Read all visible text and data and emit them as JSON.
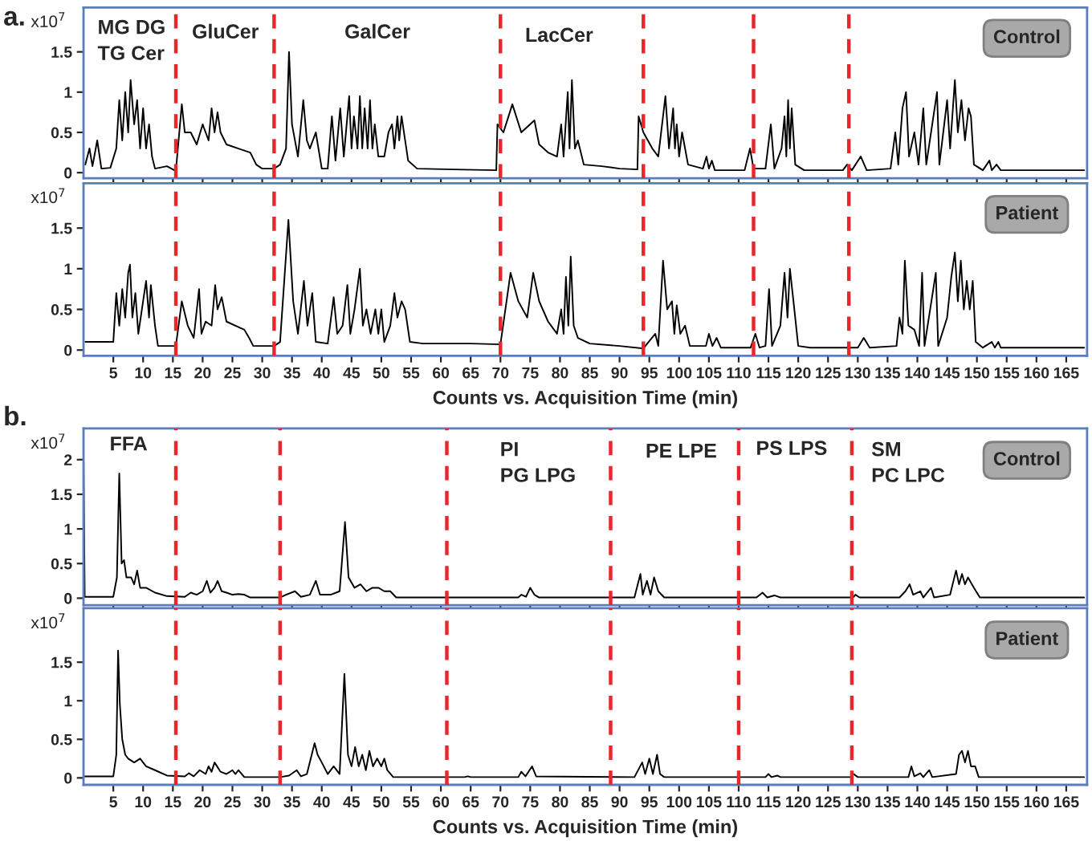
{
  "chart_data": [
    {
      "type": "line",
      "title": "a.",
      "ylabel": "x10$^{7}$",
      "tick_labels": "y",
      "xlim": [
        0,
        168.5
      ],
      "xticks": [
        5,
        10,
        15,
        20,
        25,
        30,
        35,
        40,
        45,
        50,
        55,
        60,
        65,
        70,
        75,
        80,
        85,
        90,
        95,
        100,
        105,
        110,
        115,
        120,
        125,
        130,
        135,
        140,
        145,
        150,
        155,
        160,
        165
      ],
      "ylim": [
        -0.07,
        2.05
      ],
      "yticks": [
        0,
        0.5,
        1,
        1.5
      ],
      "annotations": [
        "Control",
        "MG DG\nTG Cer",
        "GluCer",
        "GalCer",
        "LacCer"
      ],
      "ref_lines": [
        {
          "axis": "x",
          "value": 15.5,
          "color": "#e8262b",
          "line_style": "dashed"
        },
        {
          "axis": "x",
          "value": 32,
          "color": "#e8262b",
          "line_style": "dashed"
        },
        {
          "axis": "x",
          "value": 70,
          "color": "#e8262b",
          "line_style": "dashed"
        },
        {
          "axis": "x",
          "value": 94,
          "color": "#e8262b",
          "line_style": "dashed"
        },
        {
          "axis": "x",
          "value": 112.5,
          "color": "#e8262b",
          "line_style": "dashed"
        },
        {
          "axis": "x",
          "value": 128.5,
          "color": "#e8262b",
          "line_style": "dashed"
        }
      ],
      "series": [
        {
          "color": "#000000",
          "x": [
            0.3,
            1,
            1.5,
            2.3,
            3,
            4.5,
            5.5,
            6,
            6.5,
            7,
            7.5,
            7.9,
            8.5,
            9,
            9.5,
            10,
            10.5,
            11,
            11.5,
            12,
            14,
            15.5,
            16.5,
            17,
            18,
            19,
            20,
            21,
            21.5,
            22,
            22.5,
            23,
            24,
            26,
            28,
            29,
            30,
            32,
            33,
            34,
            34.5,
            35,
            36,
            36.9,
            37.5,
            38,
            39,
            40,
            41,
            41.7,
            42.3,
            43.1,
            43.7,
            44.6,
            45,
            45.4,
            46,
            46.4,
            46.8,
            47.2,
            47.7,
            48.1,
            48.5,
            48.9,
            49.5,
            50.5,
            51.2,
            51.8,
            52.2,
            52.7,
            53,
            53.4,
            54.5,
            56,
            62,
            69.3,
            69.5,
            70.5,
            72,
            73.5,
            75.7,
            76.5,
            78,
            79.5,
            80.2,
            80.6,
            81.3,
            81.6,
            82,
            82.5,
            83,
            84,
            87,
            90,
            93,
            93.2,
            94,
            95.5,
            96.5,
            97.7,
            98.3,
            99,
            99.3,
            99.6,
            100,
            100.5,
            101.5,
            104,
            104.6,
            105,
            105.5,
            106,
            111,
            111.9,
            112.5,
            114.5,
            115.4,
            116,
            117.2,
            117.7,
            118,
            118.3,
            118.6,
            118.9,
            119.5,
            121,
            127.5,
            128.2,
            129,
            130.5,
            131.5,
            135.5,
            136.3,
            136.8,
            137.5,
            138.1,
            138.6,
            139.5,
            140.2,
            141,
            141.5,
            143.3,
            143.7,
            145,
            145.5,
            146.3,
            146.8,
            147.4,
            148,
            148.6,
            149,
            149.5,
            151,
            152.1,
            152.5,
            153.3,
            154,
            168
          ],
          "values": [
            0.1,
            0.3,
            0.08,
            0.4,
            0.05,
            0.06,
            0.3,
            0.9,
            0.4,
            1.0,
            0.5,
            1.15,
            0.6,
            0.9,
            0.3,
            0.8,
            0.3,
            0.6,
            0.2,
            0.05,
            0.08,
            0.02,
            0.85,
            0.5,
            0.5,
            0.35,
            0.6,
            0.4,
            0.8,
            0.5,
            0.75,
            0.5,
            0.35,
            0.3,
            0.25,
            0.1,
            0.05,
            0.05,
            0.1,
            0.3,
            1.5,
            0.6,
            0.2,
            0.9,
            0.4,
            0.3,
            0.5,
            0.05,
            0.05,
            0.7,
            0.15,
            0.8,
            0.2,
            0.95,
            0.3,
            0.7,
            0.3,
            0.95,
            0.3,
            0.8,
            0.3,
            0.9,
            0.3,
            0.6,
            0.2,
            0.2,
            0.5,
            0.6,
            0.3,
            0.7,
            0.4,
            0.7,
            0.15,
            0.05,
            0.04,
            0.03,
            0.6,
            0.5,
            0.85,
            0.5,
            0.65,
            0.35,
            0.25,
            0.2,
            0.6,
            0.2,
            1.0,
            0.3,
            1.15,
            0.3,
            0.4,
            0.1,
            0.08,
            0.05,
            0.04,
            0.7,
            0.5,
            0.3,
            0.2,
            0.95,
            0.3,
            0.8,
            0.3,
            0.6,
            0.2,
            0.5,
            0.1,
            0.05,
            0.2,
            0.05,
            0.15,
            0.03,
            0.03,
            0.3,
            0.05,
            0.05,
            0.6,
            0.05,
            0.3,
            0.7,
            0.2,
            0.9,
            0.3,
            0.8,
            0.1,
            0.03,
            0.03,
            0.1,
            0.03,
            0.2,
            0.03,
            0.05,
            0.5,
            0.1,
            0.8,
            1.0,
            0.2,
            0.5,
            0.1,
            0.8,
            0.1,
            1.0,
            0.1,
            0.9,
            0.3,
            1.15,
            0.5,
            0.9,
            0.4,
            0.8,
            0.7,
            0.1,
            0.03,
            0.15,
            0.03,
            0.1,
            0.03,
            0.03
          ]
        }
      ]
    },
    {
      "type": "line",
      "ylabel": "x10$^{7}$",
      "xlabel": "Counts vs. Acquisition Time (min)",
      "xlim": [
        0,
        168.5
      ],
      "xticks": [
        5,
        10,
        15,
        20,
        25,
        30,
        35,
        40,
        45,
        50,
        55,
        60,
        65,
        70,
        75,
        80,
        85,
        90,
        95,
        100,
        105,
        110,
        115,
        120,
        125,
        130,
        135,
        140,
        145,
        150,
        155,
        160,
        165
      ],
      "ylim": [
        -0.07,
        2.05
      ],
      "yticks": [
        0,
        0.5,
        1,
        1.5
      ],
      "annotations": [
        "Patient"
      ],
      "ref_lines": [
        {
          "axis": "x",
          "value": 15.5,
          "color": "#e8262b",
          "line_style": "dashed"
        },
        {
          "axis": "x",
          "value": 32,
          "color": "#e8262b",
          "line_style": "dashed"
        },
        {
          "axis": "x",
          "value": 70,
          "color": "#e8262b",
          "line_style": "dashed"
        },
        {
          "axis": "x",
          "value": 94,
          "color": "#e8262b",
          "line_style": "dashed"
        },
        {
          "axis": "x",
          "value": 112.5,
          "color": "#e8262b",
          "line_style": "dashed"
        },
        {
          "axis": "x",
          "value": 128.5,
          "color": "#e8262b",
          "line_style": "dashed"
        }
      ],
      "series": [
        {
          "color": "#000000",
          "x": [
            0.3,
            5,
            5.5,
            6,
            6.5,
            7,
            7.5,
            7.8,
            8.2,
            8.7,
            9.2,
            10,
            10.5,
            11,
            11.3,
            12,
            12.5,
            15.5,
            16.5,
            17.5,
            18.5,
            19.4,
            19.8,
            20.5,
            21.5,
            22.1,
            22.5,
            23.2,
            24,
            25.5,
            27,
            27.8,
            28.5,
            32,
            33,
            34.4,
            35.2,
            36,
            37,
            37.6,
            38.4,
            39,
            41,
            42,
            42.6,
            43.5,
            44.3,
            44.8,
            45.5,
            46.4,
            46.9,
            47.5,
            48.2,
            49,
            49.5,
            50,
            50.5,
            51.5,
            52.2,
            52.7,
            53.4,
            54,
            54.8,
            57,
            65,
            70,
            71.7,
            73,
            74.5,
            75.5,
            76.5,
            78,
            79.5,
            80.2,
            80.6,
            81,
            81.4,
            81.8,
            82.3,
            83,
            85,
            90,
            94,
            96,
            96.5,
            97.3,
            98,
            98.8,
            99.2,
            99.6,
            100.2,
            101,
            101.8,
            104.5,
            105,
            105.6,
            106.3,
            107,
            112,
            112.8,
            113.5,
            114.5,
            115.1,
            115.6,
            117,
            117.7,
            118.2,
            118.6,
            119.2,
            120,
            122,
            130,
            131,
            132,
            136.5,
            137,
            137.5,
            137.9,
            138.5,
            139.5,
            140.3,
            140.8,
            141.2,
            143.1,
            143.5,
            145,
            145.7,
            146.3,
            146.8,
            147.3,
            147.8,
            148.3,
            148.8,
            149.3,
            149.8,
            151,
            152.5,
            153,
            153.6,
            154,
            168
          ],
          "values": [
            0.1,
            0.1,
            0.7,
            0.3,
            0.75,
            0.4,
            0.95,
            1.05,
            0.4,
            0.7,
            0.2,
            0.6,
            0.85,
            0.4,
            0.8,
            0.3,
            0.05,
            0.05,
            0.6,
            0.3,
            0.15,
            0.75,
            0.2,
            0.35,
            0.3,
            0.8,
            0.5,
            0.65,
            0.35,
            0.3,
            0.25,
            0.15,
            0.05,
            0.05,
            0.1,
            1.6,
            0.6,
            0.2,
            0.85,
            0.3,
            0.7,
            0.1,
            0.08,
            0.65,
            0.2,
            0.3,
            0.8,
            0.2,
            0.5,
            1.0,
            0.3,
            0.5,
            0.2,
            0.5,
            0.2,
            0.5,
            0.1,
            0.3,
            0.7,
            0.4,
            0.6,
            0.5,
            0.1,
            0.08,
            0.08,
            0.07,
            0.95,
            0.6,
            0.4,
            0.95,
            0.6,
            0.35,
            0.2,
            0.5,
            0.2,
            0.9,
            0.3,
            1.15,
            0.3,
            0.15,
            0.08,
            0.05,
            0.02,
            0.2,
            0.05,
            1.1,
            0.5,
            0.6,
            0.2,
            0.55,
            0.2,
            0.3,
            0.05,
            0.05,
            0.2,
            0.05,
            0.15,
            0.03,
            0.03,
            0.2,
            0.03,
            0.05,
            0.75,
            0.05,
            0.3,
            0.95,
            0.4,
            1.0,
            0.6,
            0.05,
            0.03,
            0.03,
            0.15,
            0.03,
            0.05,
            0.4,
            0.2,
            1.1,
            0.3,
            0.25,
            0.05,
            0.95,
            0.05,
            0.95,
            0.05,
            0.4,
            0.9,
            1.2,
            0.6,
            1.1,
            0.5,
            0.85,
            0.5,
            0.85,
            0.1,
            0.03,
            0.1,
            0.03,
            0.1,
            0.03,
            0.03
          ]
        }
      ]
    },
    {
      "type": "line",
      "title": "b.",
      "ylabel": "x10$^{7}$",
      "tick_labels": "y",
      "xlim": [
        0,
        168.5
      ],
      "xticks": [
        5,
        10,
        15,
        20,
        25,
        30,
        35,
        40,
        45,
        50,
        55,
        60,
        65,
        70,
        75,
        80,
        85,
        90,
        95,
        100,
        105,
        110,
        115,
        120,
        125,
        130,
        135,
        140,
        145,
        150,
        155,
        160,
        165
      ],
      "ylim": [
        -0.1,
        2.45
      ],
      "yticks": [
        0,
        0.5,
        1,
        1.5,
        2
      ],
      "annotations": [
        "Control",
        "FFA",
        "PI\nPG LPG",
        "PE LPE",
        "PS LPS",
        "SM\nPC LPC"
      ],
      "ref_lines": [
        {
          "axis": "x",
          "value": 15.5,
          "color": "#e8262b",
          "line_style": "dashed"
        },
        {
          "axis": "x",
          "value": 33,
          "color": "#e8262b",
          "line_style": "dashed"
        },
        {
          "axis": "x",
          "value": 61,
          "color": "#e8262b",
          "line_style": "dashed"
        },
        {
          "axis": "x",
          "value": 88.5,
          "color": "#e8262b",
          "line_style": "dashed"
        },
        {
          "axis": "x",
          "value": 110,
          "color": "#e8262b",
          "line_style": "dashed"
        },
        {
          "axis": "x",
          "value": 129,
          "color": "#e8262b",
          "line_style": "dashed"
        }
      ],
      "series": [
        {
          "color": "#000000",
          "x": [
            0,
            0.2,
            5,
            5.6,
            6,
            6.4,
            6.8,
            7.2,
            8,
            8.5,
            9,
            9.5,
            10.5,
            12,
            14,
            17,
            18,
            19,
            20,
            20.7,
            21.3,
            22,
            22.5,
            23.2,
            24,
            25,
            26,
            27,
            28,
            33,
            34,
            35.5,
            36.5,
            38,
            39,
            39.7,
            41.5,
            43,
            43.9,
            44.5,
            45.5,
            46.5,
            47.5,
            48.5,
            49.5,
            50.5,
            51.5,
            52.5,
            73,
            73.5,
            74.3,
            75,
            75.7,
            76.5,
            92.5,
            93.5,
            93.9,
            94.6,
            95.2,
            95.8,
            96.5,
            97.5,
            113,
            114,
            114.8,
            116,
            117,
            129.2,
            129.6,
            130.3,
            137,
            138,
            138.7,
            139.3,
            140.5,
            141,
            142.3,
            142.8,
            145.5,
            146.5,
            147,
            147.5,
            148,
            148.5,
            149.5,
            150.5,
            168
          ],
          "values": [
            2.0,
            0.02,
            0.02,
            0.3,
            1.8,
            0.5,
            0.55,
            0.3,
            0.3,
            0.2,
            0.4,
            0.15,
            0.15,
            0.08,
            0.03,
            0.02,
            0.08,
            0.05,
            0.1,
            0.25,
            0.08,
            0.15,
            0.25,
            0.1,
            0.08,
            0.05,
            0.06,
            0.05,
            0.01,
            0.01,
            0.05,
            0.1,
            0.02,
            0.05,
            0.25,
            0.05,
            0.05,
            0.1,
            1.1,
            0.3,
            0.15,
            0.2,
            0.1,
            0.15,
            0.15,
            0.1,
            0.1,
            0.01,
            0.01,
            0.05,
            0.02,
            0.15,
            0.05,
            0.01,
            0.01,
            0.35,
            0.05,
            0.25,
            0.05,
            0.3,
            0.1,
            0.01,
            0.01,
            0.08,
            0.01,
            0.04,
            0.01,
            0.01,
            0.05,
            0.01,
            0.01,
            0.1,
            0.2,
            0.05,
            0.1,
            0.01,
            0.15,
            0.01,
            0.05,
            0.4,
            0.2,
            0.35,
            0.2,
            0.3,
            0.15,
            0.01,
            0.01
          ]
        }
      ]
    },
    {
      "type": "line",
      "ylabel": "x10$^{7}$",
      "xlabel": "Counts vs. Acquisition Time (min)",
      "xlim": [
        0,
        168.5
      ],
      "xticks": [
        5,
        10,
        15,
        20,
        25,
        30,
        35,
        40,
        45,
        50,
        55,
        60,
        65,
        70,
        75,
        80,
        85,
        90,
        95,
        100,
        105,
        110,
        115,
        120,
        125,
        130,
        135,
        140,
        145,
        150,
        155,
        160,
        165
      ],
      "ylim": [
        -0.09,
        2.2
      ],
      "yticks": [
        0,
        0.5,
        1,
        1.5
      ],
      "annotations": [
        "Patient"
      ],
      "ref_lines": [
        {
          "axis": "x",
          "value": 15.5,
          "color": "#e8262b",
          "line_style": "dashed"
        },
        {
          "axis": "x",
          "value": 33,
          "color": "#e8262b",
          "line_style": "dashed"
        },
        {
          "axis": "x",
          "value": 61,
          "color": "#e8262b",
          "line_style": "dashed"
        },
        {
          "axis": "x",
          "value": 88.5,
          "color": "#e8262b",
          "line_style": "dashed"
        },
        {
          "axis": "x",
          "value": 110,
          "color": "#e8262b",
          "line_style": "dashed"
        },
        {
          "axis": "x",
          "value": 129,
          "color": "#e8262b",
          "line_style": "dashed"
        }
      ],
      "series": [
        {
          "color": "#000000",
          "x": [
            0.2,
            5,
            5.5,
            5.8,
            6.1,
            6.5,
            7,
            7.5,
            8.5,
            9.5,
            10.5,
            12,
            14,
            17,
            17.7,
            18.5,
            19.5,
            20.5,
            21,
            21.5,
            22,
            23,
            24,
            25,
            25.5,
            26,
            27,
            33,
            34.5,
            35.8,
            36.5,
            37.5,
            38.8,
            39.3,
            40,
            41,
            42,
            43,
            43.8,
            44.4,
            45,
            45.6,
            46.2,
            46.8,
            47.4,
            48,
            48.6,
            49.3,
            50,
            50.5,
            51,
            52,
            64,
            64.5,
            65,
            73,
            73.5,
            74.2,
            75.3,
            76,
            92.5,
            93.8,
            94.3,
            95,
            95.6,
            96.3,
            96.8,
            97.5,
            114.5,
            115,
            115.5,
            116.5,
            117,
            129,
            129.3,
            130,
            138.5,
            139,
            139.5,
            140.5,
            141,
            142,
            142.5,
            146.5,
            147,
            147.5,
            148,
            148.5,
            149,
            149.7,
            150.3,
            168
          ],
          "values": [
            0.02,
            0.02,
            0.3,
            1.65,
            0.95,
            0.5,
            0.3,
            0.25,
            0.2,
            0.25,
            0.15,
            0.1,
            0.03,
            0.02,
            0.06,
            0.02,
            0.1,
            0.05,
            0.15,
            0.08,
            0.2,
            0.08,
            0.05,
            0.1,
            0.05,
            0.1,
            0.01,
            0.01,
            0.03,
            0.1,
            0.02,
            0.05,
            0.45,
            0.3,
            0.2,
            0.05,
            0.15,
            0.05,
            1.35,
            0.3,
            0.15,
            0.4,
            0.15,
            0.3,
            0.1,
            0.35,
            0.15,
            0.25,
            0.15,
            0.25,
            0.1,
            0.01,
            0.01,
            0.02,
            0.01,
            0.01,
            0.08,
            0.02,
            0.15,
            0.02,
            0.01,
            0.2,
            0.05,
            0.25,
            0.05,
            0.3,
            0.05,
            0.01,
            0.01,
            0.05,
            0.01,
            0.03,
            0.01,
            0.01,
            0.05,
            0.01,
            0.01,
            0.15,
            0.02,
            0.06,
            0.01,
            0.1,
            0.01,
            0.05,
            0.3,
            0.35,
            0.2,
            0.35,
            0.15,
            0.15,
            0.01,
            0.01
          ]
        }
      ]
    }
  ]
}
